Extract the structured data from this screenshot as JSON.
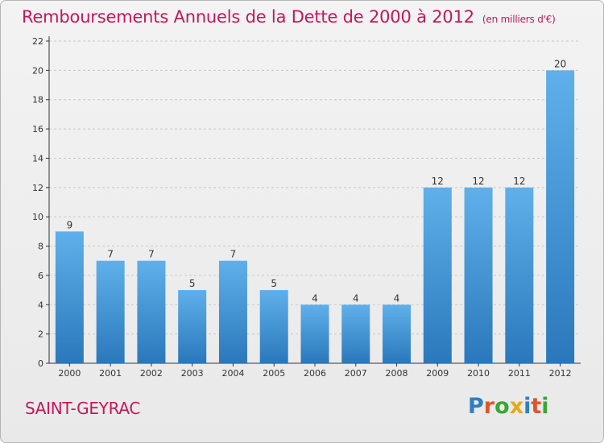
{
  "header": {
    "title": "Remboursements Annuels de la Dette de 2000 à 2012",
    "unit": "(en milliers d'€)"
  },
  "footer": {
    "commune": "SAINT-GEYRAC",
    "logo": "Proxiti",
    "logo_colors": [
      "#2e7fc1",
      "#e0542a",
      "#3aa635",
      "#e6a817",
      "#2e7fc1",
      "#e0542a",
      "#3aa635"
    ]
  },
  "colors": {
    "bar_top": "#5fb0ea",
    "bar_bottom": "#2a78bb",
    "title": "#c2185b",
    "grid": "#c8c8c8",
    "axis": "#333333"
  },
  "chart_data": {
    "type": "bar",
    "categories": [
      "2000",
      "2001",
      "2002",
      "2003",
      "2004",
      "2005",
      "2006",
      "2007",
      "2008",
      "2009",
      "2010",
      "2011",
      "2012"
    ],
    "values": [
      9,
      7,
      7,
      5,
      7,
      5,
      4,
      4,
      4,
      12,
      12,
      12,
      20
    ],
    "title": "Remboursements Annuels de la Dette de 2000 à 2012",
    "ylim": [
      0,
      22
    ],
    "yticks": [
      0,
      2,
      4,
      6,
      8,
      10,
      12,
      14,
      16,
      18,
      20,
      22
    ],
    "grid": true,
    "data_labels": true
  }
}
